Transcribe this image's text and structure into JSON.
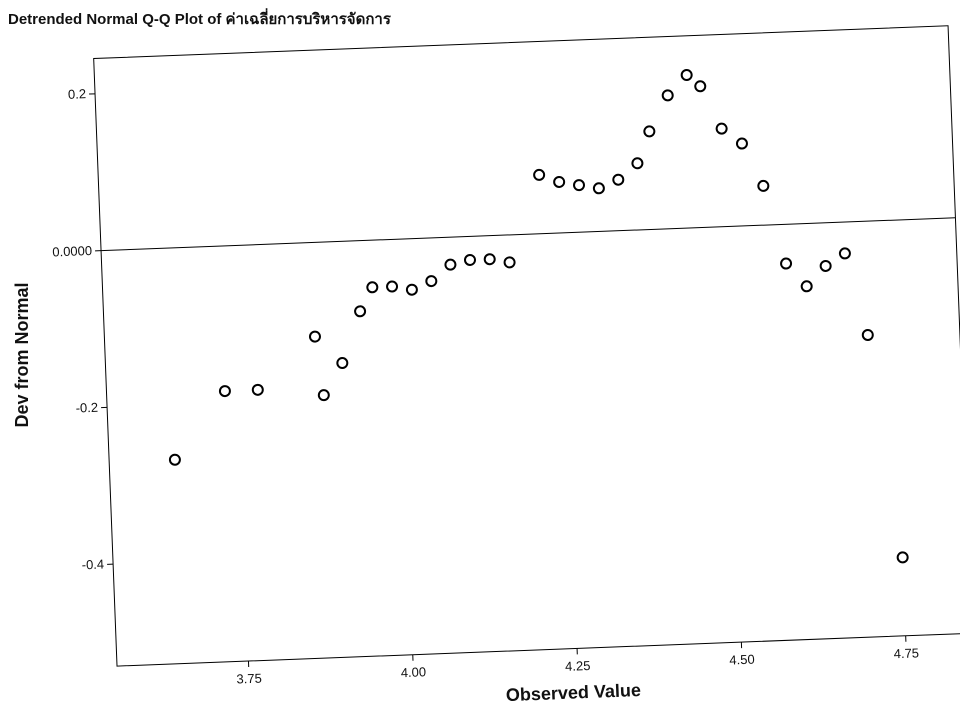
{
  "chart_data": {
    "type": "scatter",
    "title": "Detrended Normal Q-Q Plot of ค่าเฉลี่ยการบริหารจัดการ",
    "xlabel": "Observed Value",
    "ylabel": "Dev from Normal",
    "xlim": [
      3.55,
      4.85
    ],
    "ylim": [
      -0.53,
      0.245
    ],
    "x_ticks": [
      {
        "value": 3.75,
        "label": "3.75"
      },
      {
        "value": 4.0,
        "label": "4.00"
      },
      {
        "value": 4.25,
        "label": "4.25"
      },
      {
        "value": 4.5,
        "label": "4.50"
      },
      {
        "value": 4.75,
        "label": "4.75"
      }
    ],
    "y_ticks": [
      {
        "value": 0.2,
        "label": "0.2"
      },
      {
        "value": 0.0,
        "label": "0.0000"
      },
      {
        "value": -0.2,
        "label": "-0.2"
      },
      {
        "value": -0.4,
        "label": "-0.4"
      }
    ],
    "reference_line_y": 0.0,
    "grid": false,
    "marker": "open-circle",
    "series": [
      {
        "points": [
          {
            "x": 3.65,
            "y": -0.27
          },
          {
            "x": 3.73,
            "y": -0.185
          },
          {
            "x": 3.78,
            "y": -0.185
          },
          {
            "x": 3.87,
            "y": -0.12
          },
          {
            "x": 3.88,
            "y": -0.195
          },
          {
            "x": 3.91,
            "y": -0.155
          },
          {
            "x": 3.94,
            "y": -0.09
          },
          {
            "x": 3.96,
            "y": -0.06
          },
          {
            "x": 3.99,
            "y": -0.06
          },
          {
            "x": 4.02,
            "y": -0.065
          },
          {
            "x": 4.05,
            "y": -0.055
          },
          {
            "x": 4.08,
            "y": -0.035
          },
          {
            "x": 4.11,
            "y": -0.03
          },
          {
            "x": 4.14,
            "y": -0.03
          },
          {
            "x": 4.17,
            "y": -0.035
          },
          {
            "x": 4.22,
            "y": 0.075
          },
          {
            "x": 4.25,
            "y": 0.065
          },
          {
            "x": 4.28,
            "y": 0.06
          },
          {
            "x": 4.31,
            "y": 0.055
          },
          {
            "x": 4.34,
            "y": 0.065
          },
          {
            "x": 4.37,
            "y": 0.085
          },
          {
            "x": 4.39,
            "y": 0.125
          },
          {
            "x": 4.42,
            "y": 0.17
          },
          {
            "x": 4.45,
            "y": 0.195
          },
          {
            "x": 4.47,
            "y": 0.18
          },
          {
            "x": 4.5,
            "y": 0.125
          },
          {
            "x": 4.53,
            "y": 0.105
          },
          {
            "x": 4.56,
            "y": 0.05
          },
          {
            "x": 4.59,
            "y": -0.05
          },
          {
            "x": 4.62,
            "y": -0.08
          },
          {
            "x": 4.65,
            "y": -0.055
          },
          {
            "x": 4.68,
            "y": -0.04
          },
          {
            "x": 4.71,
            "y": -0.145
          },
          {
            "x": 4.75,
            "y": -0.43
          }
        ]
      }
    ]
  }
}
